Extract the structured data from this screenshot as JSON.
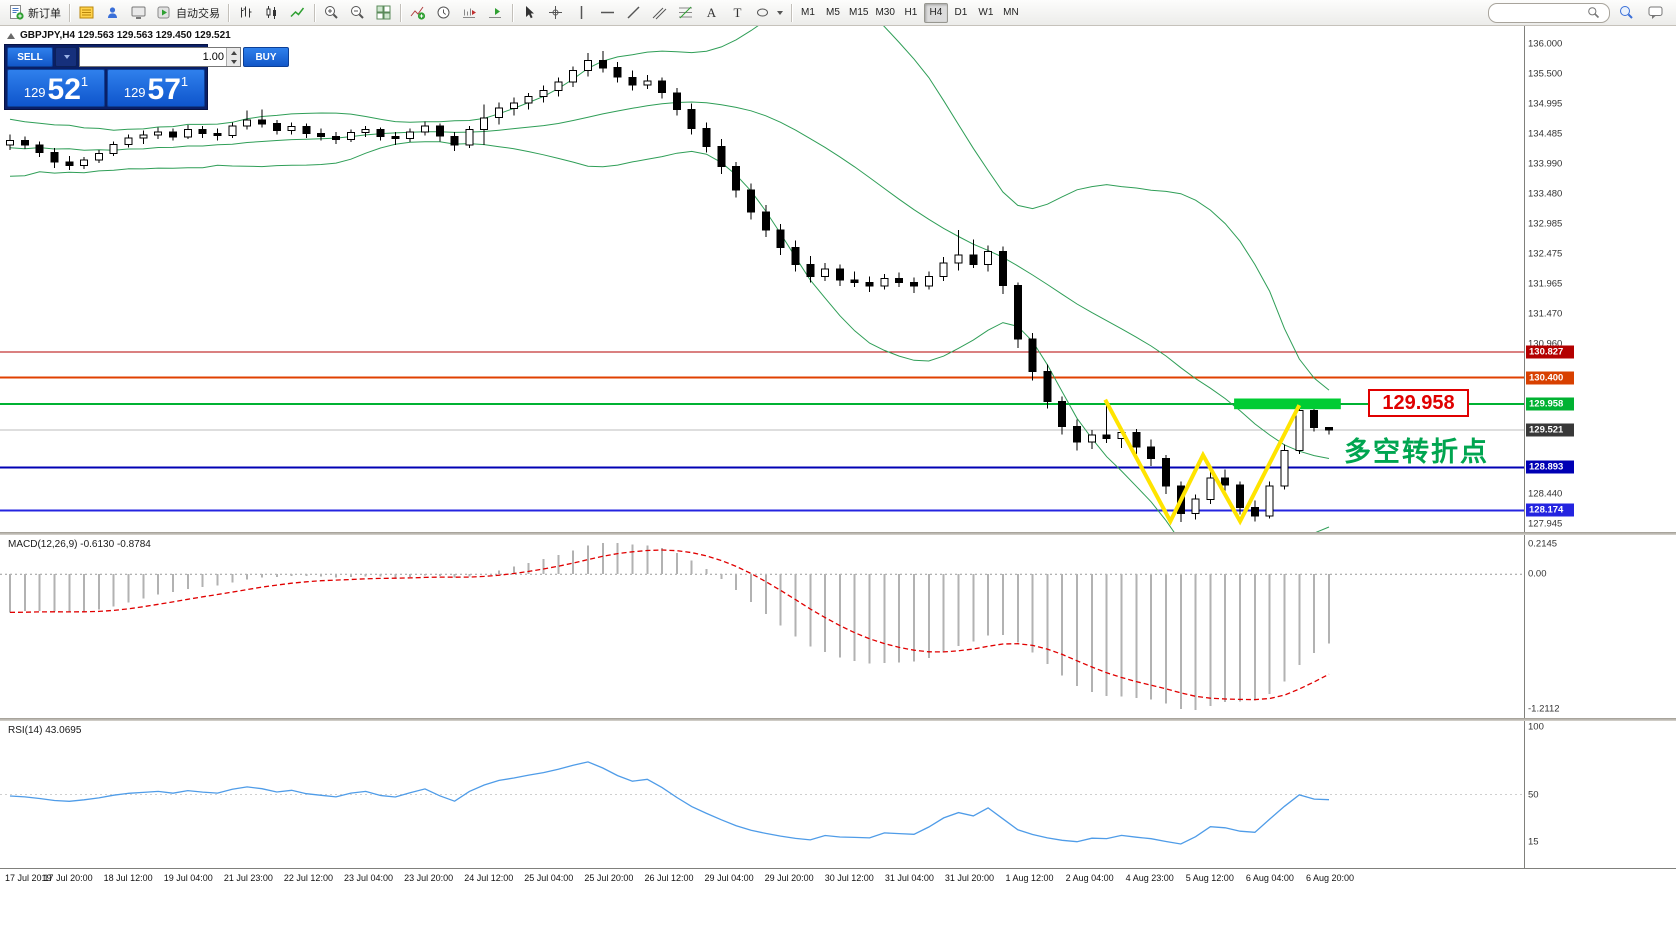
{
  "toolbar": {
    "new_order_label": "新订单",
    "autotrading_label": "自动交易",
    "timeframes": [
      "M1",
      "M5",
      "M15",
      "M30",
      "H1",
      "H4",
      "D1",
      "W1",
      "MN"
    ],
    "active_timeframe": "H4",
    "search_placeholder": ""
  },
  "chart": {
    "title": "GBPJPY,H4 129.563 129.563 129.450 129.521",
    "symbol": "GBPJPY",
    "period": "H4"
  },
  "trade_panel": {
    "sell_label": "SELL",
    "buy_label": "BUY",
    "volume": "1.00",
    "sell_price": {
      "prefix": "129",
      "big": "52",
      "sup": "1"
    },
    "buy_price": {
      "prefix": "129",
      "big": "57",
      "sup": "1"
    }
  },
  "annotations": {
    "price_callout": "129.958",
    "turning_point_label": "多空转折点"
  },
  "price_scale": {
    "plain_labels": [
      "136.000",
      "135.500",
      "134.995",
      "134.485",
      "133.990",
      "133.480",
      "132.985",
      "132.475",
      "131.965",
      "131.470",
      "130.960",
      "128.440",
      "127.945"
    ],
    "badges": [
      {
        "label": "130.827",
        "price": 130.827,
        "bg": "#b40000"
      },
      {
        "label": "130.400",
        "price": 130.4,
        "bg": "#d84000"
      },
      {
        "label": "129.958",
        "price": 129.958,
        "bg": "#00b232"
      },
      {
        "label": "129.521",
        "price": 129.521,
        "bg": "#383838"
      },
      {
        "label": "128.893",
        "price": 128.893,
        "bg": "#0000b4"
      },
      {
        "label": "128.174",
        "price": 128.174,
        "bg": "#2424e0"
      }
    ]
  },
  "macd_panel": {
    "header": "MACD(12,26,9) -0.6130 -0.8784",
    "scale_labels": [
      "0.2145",
      "0.00",
      "-1.2112"
    ]
  },
  "rsi_panel": {
    "header": "RSI(14) 43.0695",
    "scale_labels": [
      "100",
      "50",
      "15"
    ]
  },
  "time_axis": [
    "17 Jul 2019",
    "17 Jul 20:00",
    "18 Jul 12:00",
    "19 Jul 04:00",
    "21 Jul 23:00",
    "22 Jul 12:00",
    "23 Jul 04:00",
    "23 Jul 20:00",
    "24 Jul 12:00",
    "25 Jul 04:00",
    "25 Jul 20:00",
    "26 Jul 12:00",
    "29 Jul 04:00",
    "29 Jul 20:00",
    "30 Jul 12:00",
    "31 Jul 04:00",
    "31 Jul 20:00",
    "1 Aug 12:00",
    "2 Aug 04:00",
    "4 Aug 23:00",
    "5 Aug 12:00",
    "6 Aug 04:00",
    "6 Aug 20:00"
  ],
  "chart_data": {
    "type": "candlestick",
    "symbol": "GBPJPY",
    "timeframe": "H4",
    "price_axis": {
      "min": 127.81,
      "max": 136.3
    },
    "candles": [
      [
        134.3,
        134.48,
        134.22,
        134.38
      ],
      [
        134.38,
        134.45,
        134.24,
        134.3
      ],
      [
        134.3,
        134.36,
        134.1,
        134.18
      ],
      [
        134.18,
        134.25,
        133.92,
        134.02
      ],
      [
        134.02,
        134.12,
        133.88,
        133.96
      ],
      [
        133.96,
        134.1,
        133.9,
        134.05
      ],
      [
        134.05,
        134.22,
        134.0,
        134.16
      ],
      [
        134.16,
        134.36,
        134.12,
        134.31
      ],
      [
        134.31,
        134.48,
        134.26,
        134.42
      ],
      [
        134.42,
        134.55,
        134.32,
        134.47
      ],
      [
        134.47,
        134.6,
        134.4,
        134.52
      ],
      [
        134.52,
        134.58,
        134.38,
        134.44
      ],
      [
        134.44,
        134.64,
        134.4,
        134.56
      ],
      [
        134.56,
        134.62,
        134.42,
        134.5
      ],
      [
        134.5,
        134.58,
        134.38,
        134.46
      ],
      [
        134.46,
        134.68,
        134.42,
        134.62
      ],
      [
        134.62,
        134.88,
        134.56,
        134.72
      ],
      [
        134.72,
        134.9,
        134.6,
        134.66
      ],
      [
        134.66,
        134.72,
        134.48,
        134.55
      ],
      [
        134.55,
        134.68,
        134.48,
        134.61
      ],
      [
        134.61,
        134.66,
        134.42,
        134.5
      ],
      [
        134.5,
        134.58,
        134.38,
        134.45
      ],
      [
        134.45,
        134.52,
        134.32,
        134.4
      ],
      [
        134.4,
        134.56,
        134.35,
        134.51
      ],
      [
        134.51,
        134.62,
        134.44,
        134.56
      ],
      [
        134.56,
        134.6,
        134.38,
        134.45
      ],
      [
        134.45,
        134.52,
        134.3,
        134.41
      ],
      [
        134.41,
        134.58,
        134.35,
        134.52
      ],
      [
        134.52,
        134.7,
        134.46,
        134.62
      ],
      [
        134.62,
        134.66,
        134.36,
        134.45
      ],
      [
        134.45,
        134.52,
        134.2,
        134.3
      ],
      [
        134.3,
        134.62,
        134.25,
        134.56
      ],
      [
        134.56,
        134.98,
        134.3,
        134.76
      ],
      [
        134.76,
        135.02,
        134.65,
        134.92
      ],
      [
        134.92,
        135.1,
        134.8,
        135.01
      ],
      [
        135.01,
        135.18,
        134.9,
        135.12
      ],
      [
        135.12,
        135.3,
        135.02,
        135.22
      ],
      [
        135.22,
        135.44,
        135.12,
        135.36
      ],
      [
        135.36,
        135.62,
        135.28,
        135.55
      ],
      [
        135.55,
        135.85,
        135.45,
        135.72
      ],
      [
        135.72,
        135.88,
        135.52,
        135.6
      ],
      [
        135.6,
        135.7,
        135.35,
        135.44
      ],
      [
        135.44,
        135.55,
        135.22,
        135.31
      ],
      [
        135.31,
        135.48,
        135.24,
        135.38
      ],
      [
        135.38,
        135.44,
        135.08,
        135.18
      ],
      [
        135.18,
        135.26,
        134.8,
        134.9
      ],
      [
        134.9,
        135.0,
        134.48,
        134.58
      ],
      [
        134.58,
        134.68,
        134.18,
        134.28
      ],
      [
        134.28,
        134.4,
        133.82,
        133.94
      ],
      [
        133.94,
        134.02,
        133.42,
        133.55
      ],
      [
        133.55,
        133.66,
        133.05,
        133.18
      ],
      [
        133.18,
        133.3,
        132.76,
        132.88
      ],
      [
        132.88,
        132.98,
        132.46,
        132.58
      ],
      [
        132.58,
        132.7,
        132.18,
        132.3
      ],
      [
        132.3,
        132.44,
        132.0,
        132.1
      ],
      [
        132.1,
        132.32,
        132.02,
        132.22
      ],
      [
        132.22,
        132.3,
        131.94,
        132.04
      ],
      [
        132.04,
        132.18,
        131.92,
        132.0
      ],
      [
        132.0,
        132.1,
        131.84,
        131.94
      ],
      [
        131.94,
        132.14,
        131.88,
        132.06
      ],
      [
        132.06,
        132.16,
        131.92,
        132.0
      ],
      [
        132.0,
        132.08,
        131.82,
        131.94
      ],
      [
        131.94,
        132.18,
        131.88,
        132.1
      ],
      [
        132.1,
        132.42,
        132.02,
        132.32
      ],
      [
        132.32,
        132.88,
        132.2,
        132.46
      ],
      [
        132.46,
        132.72,
        132.24,
        132.3
      ],
      [
        132.3,
        132.62,
        132.18,
        132.52
      ],
      [
        132.52,
        132.6,
        131.8,
        131.95
      ],
      [
        131.95,
        132.0,
        130.9,
        131.05
      ],
      [
        131.05,
        131.15,
        130.35,
        130.5
      ],
      [
        130.5,
        130.62,
        129.88,
        130.0
      ],
      [
        130.0,
        130.08,
        129.45,
        129.58
      ],
      [
        129.58,
        129.7,
        129.18,
        129.32
      ],
      [
        129.32,
        129.52,
        129.2,
        129.44
      ],
      [
        129.44,
        129.95,
        129.3,
        129.38
      ],
      [
        129.38,
        129.56,
        129.22,
        129.48
      ],
      [
        129.48,
        129.54,
        129.12,
        129.24
      ],
      [
        129.24,
        129.36,
        128.92,
        129.04
      ],
      [
        129.04,
        129.1,
        128.45,
        128.58
      ],
      [
        128.58,
        128.66,
        127.98,
        128.12
      ],
      [
        128.12,
        128.44,
        128.02,
        128.36
      ],
      [
        128.36,
        128.88,
        128.28,
        128.72
      ],
      [
        128.72,
        128.86,
        128.5,
        128.6
      ],
      [
        128.6,
        128.66,
        128.1,
        128.22
      ],
      [
        128.22,
        128.34,
        127.99,
        128.08
      ],
      [
        128.08,
        128.66,
        128.04,
        128.58
      ],
      [
        128.58,
        129.28,
        128.52,
        129.18
      ],
      [
        129.18,
        129.9,
        129.12,
        129.85
      ],
      [
        129.85,
        129.99,
        129.5,
        129.56
      ],
      [
        129.563,
        129.563,
        129.45,
        129.521
      ]
    ],
    "warmup_closes": [
      134.6,
      133.8,
      134.5,
      133.9,
      134.55,
      133.95,
      134.5,
      134.0,
      134.45,
      134.05,
      134.4,
      134.1,
      134.5,
      134.0,
      134.45,
      134.15,
      134.35,
      134.2,
      134.3
    ],
    "indicators": {
      "bollinger": {
        "period": 20,
        "deviation": 2,
        "color": "#2f9e57"
      },
      "macd": {
        "fast": 12,
        "slow": 26,
        "signal": 9,
        "bar_color": "#b2b2b2",
        "signal_color": "#e00000"
      },
      "rsi": {
        "period": 14,
        "color": "#4f9ce8"
      }
    },
    "horizontal_lines": [
      {
        "price": 130.827,
        "color": "#b40000",
        "width": 1
      },
      {
        "price": 130.4,
        "color": "#e04000",
        "width": 2
      },
      {
        "price": 129.958,
        "color": "#00b232",
        "width": 2
      },
      {
        "price": 129.521,
        "color": "#bdbdbd",
        "width": 1
      },
      {
        "price": 128.893,
        "color": "#0000b4",
        "width": 2
      },
      {
        "price": 128.174,
        "color": "#2424e0",
        "width": 2
      }
    ],
    "drawings": {
      "w_pattern": {
        "color": "#ffe400",
        "width": 4,
        "points": [
          [
            73.9,
            130.03
          ],
          [
            78.3,
            127.99
          ],
          [
            80.5,
            129.1
          ],
          [
            83.0,
            127.99
          ],
          [
            87.0,
            129.94
          ]
        ]
      },
      "green_zone": {
        "color": "#00cc33",
        "i0": 82.6,
        "i1": 89.8,
        "p0": 129.87,
        "p1": 130.05
      }
    }
  }
}
